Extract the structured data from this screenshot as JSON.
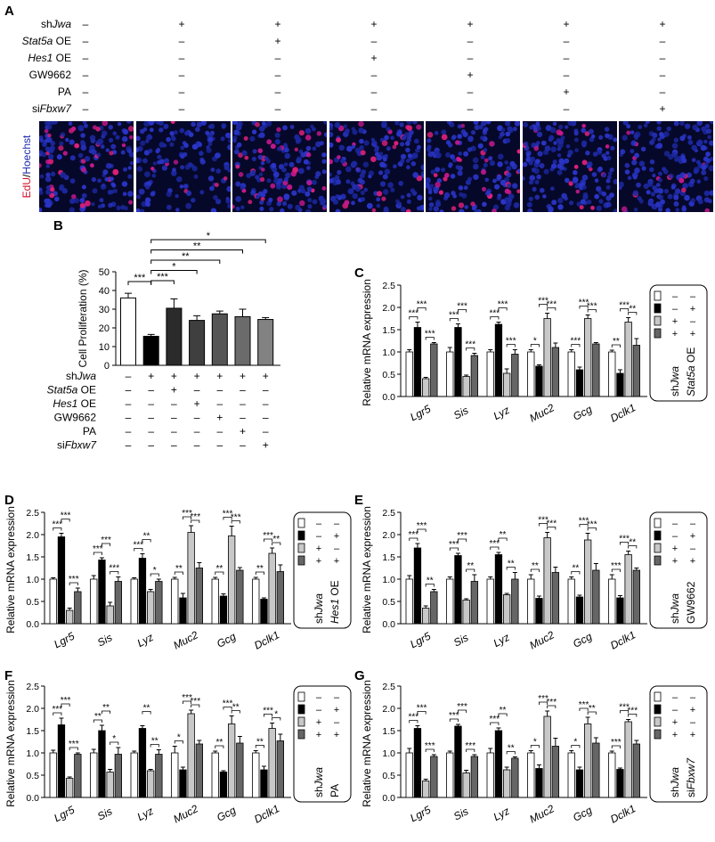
{
  "panel_a": {
    "letter": "A",
    "rows": [
      {
        "label_prefix": "sh",
        "label_italic": "Jwa",
        "label_suffix": "",
        "signs": [
          "–",
          "+",
          "+",
          "+",
          "+",
          "+",
          "+"
        ]
      },
      {
        "label_prefix": "",
        "label_italic": "Stat5a",
        "label_suffix": " OE",
        "signs": [
          "–",
          "–",
          "+",
          "–",
          "–",
          "–",
          "–"
        ]
      },
      {
        "label_prefix": "",
        "label_italic": "Hes1",
        "label_suffix": " OE",
        "signs": [
          "–",
          "–",
          "–",
          "+",
          "–",
          "–",
          "–"
        ]
      },
      {
        "label_prefix": "GW9662",
        "label_italic": "",
        "label_suffix": "",
        "signs": [
          "–",
          "–",
          "–",
          "–",
          "+",
          "–",
          "–"
        ]
      },
      {
        "label_prefix": "PA",
        "label_italic": "",
        "label_suffix": "",
        "signs": [
          "–",
          "–",
          "–",
          "–",
          "–",
          "+",
          "–"
        ]
      },
      {
        "label_prefix": "si",
        "label_italic": "Fbxw7",
        "label_suffix": "",
        "signs": [
          "–",
          "–",
          "–",
          "–",
          "–",
          "–",
          "+"
        ]
      }
    ],
    "stain_label_red": "EdU",
    "stain_label_sep": "/",
    "stain_label_blue": "Hoechst",
    "image_edu_density": [
      0.55,
      0.12,
      0.45,
      0.35,
      0.4,
      0.35,
      0.28
    ]
  },
  "chart_data": [
    {
      "panel": "B",
      "type": "bar",
      "ylabel": "Cell Proliferation (%)",
      "ylim": [
        0,
        50
      ],
      "yticks": [
        0,
        10,
        20,
        30,
        40,
        50
      ],
      "values": [
        36,
        15.5,
        30.5,
        24,
        27.5,
        26,
        24.5
      ],
      "errors": [
        2.5,
        1,
        5,
        2.5,
        1.5,
        4,
        1
      ],
      "colors": [
        "#ffffff",
        "#000000",
        "#2b2b2b",
        "#3f3f3f",
        "#555555",
        "#6b6b6b",
        "#828282"
      ],
      "brackets": [
        {
          "from": 0,
          "to": 1,
          "label": "***"
        },
        {
          "from": 1,
          "to": 2,
          "label": "***"
        },
        {
          "from": 1,
          "to": 3,
          "label": "*"
        },
        {
          "from": 1,
          "to": 4,
          "label": "**"
        },
        {
          "from": 1,
          "to": 5,
          "label": "**"
        },
        {
          "from": 1,
          "to": 6,
          "label": "*"
        }
      ],
      "conditions": [
        {
          "prefix": "sh",
          "italic": "Jwa",
          "suffix": "",
          "signs": [
            "–",
            "+",
            "+",
            "+",
            "+",
            "+",
            "+"
          ]
        },
        {
          "prefix": "",
          "italic": "Stat5a",
          "suffix": " OE",
          "signs": [
            "–",
            "–",
            "+",
            "–",
            "–",
            "–",
            "–"
          ]
        },
        {
          "prefix": "",
          "italic": "Hes1",
          "suffix": " OE",
          "signs": [
            "–",
            "–",
            "–",
            "+",
            "–",
            "–",
            "–"
          ]
        },
        {
          "prefix": "GW9662",
          "italic": "",
          "suffix": "",
          "signs": [
            "–",
            "–",
            "–",
            "–",
            "+",
            "–",
            "–"
          ]
        },
        {
          "prefix": "PA",
          "italic": "",
          "suffix": "",
          "signs": [
            "–",
            "–",
            "–",
            "–",
            "–",
            "+",
            "–"
          ]
        },
        {
          "prefix": "si",
          "italic": "Fbxw7",
          "suffix": "",
          "signs": [
            "–",
            "–",
            "–",
            "–",
            "–",
            "–",
            "+"
          ]
        }
      ]
    },
    {
      "panel": "C",
      "type": "bar",
      "ylabel": "Relative mRNA expression",
      "ylim": [
        0,
        2.5
      ],
      "yticks": [
        0.0,
        0.5,
        1.0,
        1.5,
        2.0,
        2.5
      ],
      "categories": [
        "Lgr5",
        "Sis",
        "Lyz",
        "Muc2",
        "Gcg",
        "Dclk1"
      ],
      "series": [
        {
          "values": [
            1.0,
            1.0,
            1.0,
            1.0,
            1.0,
            1.0
          ],
          "errors": [
            0.05,
            0.1,
            0.05,
            0.05,
            0.05,
            0.04
          ]
        },
        {
          "values": [
            1.55,
            1.55,
            1.62,
            0.68,
            0.6,
            0.52
          ],
          "errors": [
            0.12,
            0.08,
            0.05,
            0.03,
            0.06,
            0.08
          ]
        },
        {
          "values": [
            0.4,
            0.45,
            0.52,
            1.75,
            1.75,
            1.67
          ],
          "errors": [
            0.03,
            0.03,
            0.1,
            0.12,
            0.08,
            0.1
          ]
        },
        {
          "values": [
            1.18,
            0.92,
            0.95,
            1.1,
            1.18,
            1.15
          ],
          "errors": [
            0.03,
            0.05,
            0.1,
            0.1,
            0.03,
            0.15
          ]
        }
      ],
      "significance": [
        [
          "***",
          "***",
          "***"
        ],
        [
          "***",
          "***",
          "***"
        ],
        [
          "***",
          "***",
          "***"
        ],
        [
          "*",
          "***",
          "***"
        ],
        [
          "***",
          "***",
          "***"
        ],
        [
          "**",
          "***",
          "**"
        ]
      ],
      "legend_rows": [
        [
          "–",
          "–"
        ],
        [
          "–",
          "+"
        ],
        [
          "+",
          "–"
        ],
        [
          "+",
          "+"
        ]
      ],
      "legend_title_prefix": "sh",
      "legend_title_italic": "Jwa",
      "legend_second_italic": "Stat5a",
      "legend_second_suffix": " OE",
      "legend_second_prefix": ""
    },
    {
      "panel": "D",
      "type": "bar",
      "ylabel": "Relative mRNA expression",
      "ylim": [
        0,
        2.5
      ],
      "yticks": [
        0.0,
        0.5,
        1.0,
        1.5,
        2.0,
        2.5
      ],
      "categories": [
        "Lgr5",
        "Sis",
        "Lyz",
        "Muc2",
        "Gcg",
        "Dclk1"
      ],
      "series": [
        {
          "values": [
            1.0,
            1.0,
            1.0,
            1.0,
            1.0,
            1.0
          ],
          "errors": [
            0.03,
            0.08,
            0.03,
            0.04,
            0.04,
            0.04
          ]
        },
        {
          "values": [
            1.95,
            1.43,
            1.47,
            0.58,
            0.62,
            0.55
          ],
          "errors": [
            0.08,
            0.05,
            0.1,
            0.1,
            0.05,
            0.03
          ]
        },
        {
          "values": [
            0.3,
            0.4,
            0.72,
            2.05,
            1.97,
            1.58
          ],
          "errors": [
            0.05,
            0.08,
            0.05,
            0.15,
            0.22,
            0.12
          ]
        },
        {
          "values": [
            0.72,
            0.95,
            0.95,
            1.25,
            1.2,
            1.17
          ],
          "errors": [
            0.08,
            0.1,
            0.05,
            0.12,
            0.06,
            0.15
          ]
        }
      ],
      "significance": [
        [
          "***",
          "***",
          "***"
        ],
        [
          "***",
          "***",
          "***"
        ],
        [
          "***",
          "**",
          "*"
        ],
        [
          "**",
          "***",
          "***"
        ],
        [
          "**",
          "***",
          "***"
        ],
        [
          "**",
          "***",
          "**"
        ]
      ],
      "legend_rows": [
        [
          "–",
          "–"
        ],
        [
          "–",
          "+"
        ],
        [
          "+",
          "–"
        ],
        [
          "+",
          "+"
        ]
      ],
      "legend_title_prefix": "sh",
      "legend_title_italic": "Jwa",
      "legend_second_italic": "Hes1",
      "legend_second_suffix": " OE",
      "legend_second_prefix": ""
    },
    {
      "panel": "E",
      "type": "bar",
      "ylabel": "Relative mRNA expression",
      "ylim": [
        0,
        2.5
      ],
      "yticks": [
        0.0,
        0.5,
        1.0,
        1.5,
        2.0,
        2.5
      ],
      "categories": [
        "Lgr5",
        "Sis",
        "Lyz",
        "Muc2",
        "Gcg",
        "Dclk1"
      ],
      "series": [
        {
          "values": [
            1.0,
            1.0,
            1.0,
            1.0,
            1.0,
            1.0
          ],
          "errors": [
            0.08,
            0.05,
            0.05,
            0.1,
            0.05,
            0.1
          ]
        },
        {
          "values": [
            1.7,
            1.53,
            1.55,
            0.57,
            0.6,
            0.58
          ],
          "errors": [
            0.1,
            0.05,
            0.05,
            0.05,
            0.04,
            0.05
          ]
        },
        {
          "values": [
            0.35,
            0.53,
            0.65,
            1.93,
            1.88,
            1.55
          ],
          "errors": [
            0.05,
            0.03,
            0.03,
            0.12,
            0.15,
            0.08
          ]
        },
        {
          "values": [
            0.72,
            0.95,
            1.0,
            1.15,
            1.2,
            1.2
          ],
          "errors": [
            0.05,
            0.15,
            0.15,
            0.12,
            0.15,
            0.05
          ]
        }
      ],
      "significance": [
        [
          "***",
          "***",
          "**"
        ],
        [
          "***",
          "***",
          "**"
        ],
        [
          "***",
          "**",
          "**"
        ],
        [
          "**",
          "***",
          "***"
        ],
        [
          "**",
          "***",
          "***"
        ],
        [
          "***",
          "***",
          "**"
        ]
      ],
      "legend_rows": [
        [
          "–",
          "–"
        ],
        [
          "–",
          "+"
        ],
        [
          "+",
          "–"
        ],
        [
          "+",
          "+"
        ]
      ],
      "legend_title_prefix": "sh",
      "legend_title_italic": "Jwa",
      "legend_second_prefix": "GW9662",
      "legend_second_italic": "",
      "legend_second_suffix": ""
    },
    {
      "panel": "F",
      "type": "bar",
      "ylabel": "Relative mRNA expression",
      "ylim": [
        0,
        2.5
      ],
      "yticks": [
        0.0,
        0.5,
        1.0,
        1.5,
        2.0,
        2.5
      ],
      "categories": [
        "Lgr5",
        "Sis",
        "Lyz",
        "Muc2",
        "Gcg",
        "Dclk1"
      ],
      "series": [
        {
          "values": [
            1.0,
            1.0,
            1.0,
            1.0,
            1.0,
            1.0
          ],
          "errors": [
            0.06,
            0.08,
            0.04,
            0.15,
            0.04,
            0.05
          ]
        },
        {
          "values": [
            1.63,
            1.5,
            1.55,
            0.62,
            0.57,
            0.62
          ],
          "errors": [
            0.15,
            0.12,
            0.06,
            0.06,
            0.03,
            0.08
          ]
        },
        {
          "values": [
            0.43,
            0.57,
            0.6,
            1.88,
            1.65,
            1.55
          ],
          "errors": [
            0.03,
            0.06,
            0.03,
            0.08,
            0.18,
            0.12
          ]
        },
        {
          "values": [
            0.97,
            0.97,
            0.97,
            1.2,
            1.22,
            1.27
          ],
          "errors": [
            0.03,
            0.15,
            0.1,
            0.08,
            0.15,
            0.15
          ]
        }
      ],
      "significance": [
        [
          "***",
          "***",
          "***"
        ],
        [
          "**",
          "**",
          "*"
        ],
        [
          "",
          "**",
          "**"
        ],
        [
          "*",
          "***",
          "***"
        ],
        [
          "**",
          "***",
          "**"
        ],
        [
          "**",
          "***",
          "*"
        ]
      ],
      "legend_rows": [
        [
          "–",
          "–"
        ],
        [
          "–",
          "+"
        ],
        [
          "+",
          "–"
        ],
        [
          "+",
          "+"
        ]
      ],
      "legend_title_prefix": "sh",
      "legend_title_italic": "Jwa",
      "legend_second_prefix": "PA",
      "legend_second_italic": "",
      "legend_second_suffix": ""
    },
    {
      "panel": "G",
      "type": "bar",
      "ylabel": "Relative mRNA expression",
      "ylim": [
        0,
        2.5
      ],
      "yticks": [
        0.0,
        0.5,
        1.0,
        1.5,
        2.0,
        2.5
      ],
      "categories": [
        "Lgr5",
        "Sis",
        "Lyz",
        "Muc2",
        "Gcg",
        "Dclk1"
      ],
      "series": [
        {
          "values": [
            1.0,
            1.0,
            1.0,
            1.0,
            1.0,
            1.0
          ],
          "errors": [
            0.1,
            0.04,
            0.1,
            0.05,
            0.05,
            0.04
          ]
        },
        {
          "values": [
            1.55,
            1.6,
            1.5,
            0.65,
            0.62,
            0.63
          ],
          "errors": [
            0.06,
            0.04,
            0.06,
            0.08,
            0.06,
            0.03
          ]
        },
        {
          "values": [
            0.37,
            0.55,
            0.62,
            1.82,
            1.65,
            1.7
          ],
          "errors": [
            0.04,
            0.06,
            0.06,
            0.12,
            0.15,
            0.05
          ]
        },
        {
          "values": [
            0.92,
            0.92,
            0.88,
            1.15,
            1.22,
            1.2
          ],
          "errors": [
            0.04,
            0.04,
            0.03,
            0.18,
            0.12,
            0.08
          ]
        }
      ],
      "significance": [
        [
          "***",
          "***",
          "***"
        ],
        [
          "***",
          "***",
          "***"
        ],
        [
          "***",
          "**",
          "**"
        ],
        [
          "*",
          "***",
          "***"
        ],
        [
          "*",
          "***",
          "**"
        ],
        [
          "***",
          "***",
          "***"
        ]
      ],
      "legend_rows": [
        [
          "–",
          "–"
        ],
        [
          "–",
          "+"
        ],
        [
          "+",
          "–"
        ],
        [
          "+",
          "+"
        ]
      ],
      "legend_title_prefix": "sh",
      "legend_title_italic": "Jwa",
      "legend_second_prefix": "si",
      "legend_second_italic": "Fbxw7",
      "legend_second_suffix": ""
    }
  ],
  "bar_fill_colors": [
    "#ffffff",
    "#000000",
    "#c8c8c8",
    "#666666"
  ]
}
